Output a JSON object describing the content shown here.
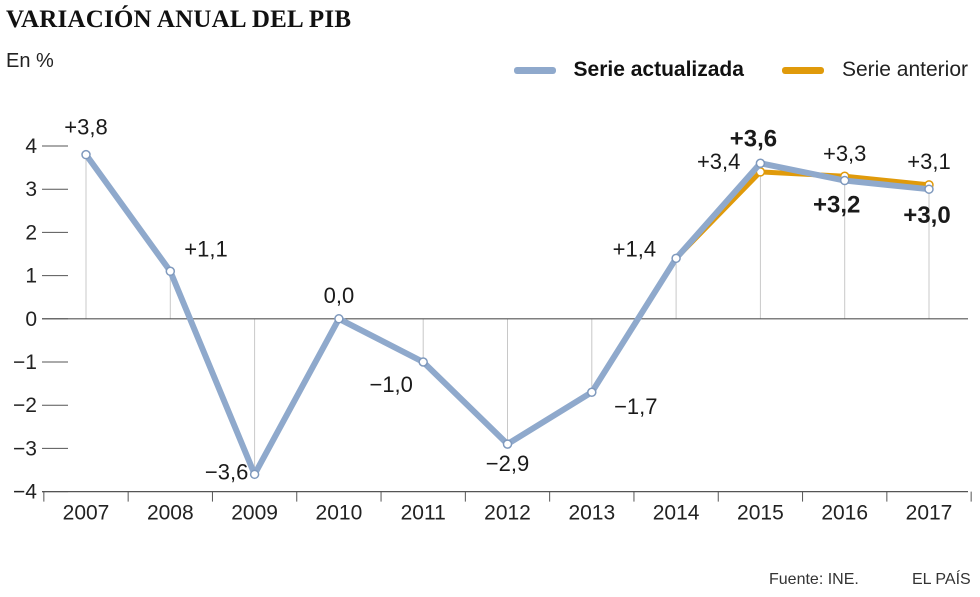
{
  "title": "VARIACIÓN ANUAL DEL PIB",
  "unit_label": "En %",
  "source": "Fuente: INE.",
  "brand": "EL PAÍS",
  "chart_data": {
    "type": "line",
    "title": "VARIACIÓN ANUAL DEL PIB",
    "ylabel": "En %",
    "ylim": [
      -4,
      4
    ],
    "yticks": [
      4,
      3,
      2,
      1,
      0,
      -1,
      -2,
      -3,
      -4
    ],
    "ytick_labels": [
      "4",
      "3",
      "2",
      "1",
      "0",
      "−1",
      "−2",
      "−3",
      "−4"
    ],
    "categories": [
      "2007",
      "2008",
      "2009",
      "2010",
      "2011",
      "2012",
      "2013",
      "2014",
      "2015",
      "2016",
      "2017"
    ],
    "grid": "vertical",
    "legend_position": "top-right",
    "series": [
      {
        "name": "Serie actualizada",
        "color": "#8fa9cc",
        "values": [
          3.8,
          1.1,
          -3.6,
          0.0,
          -1.0,
          -2.9,
          -1.7,
          1.4,
          3.6,
          3.2,
          3.0
        ],
        "labels": [
          "+3,8",
          "+1,1",
          "−3,6",
          "0,0",
          "−1,0",
          "−2,9",
          "−1,7",
          "+1,4",
          "+3,6",
          "+3,2",
          "+3,0"
        ]
      },
      {
        "name": "Serie anterior",
        "color": "#e09a0a",
        "x": [
          "2014",
          "2015",
          "2016",
          "2017"
        ],
        "values": [
          1.4,
          3.4,
          3.3,
          3.1
        ],
        "labels": [
          "+3,4",
          "+3,3",
          "+3,1"
        ]
      }
    ]
  }
}
